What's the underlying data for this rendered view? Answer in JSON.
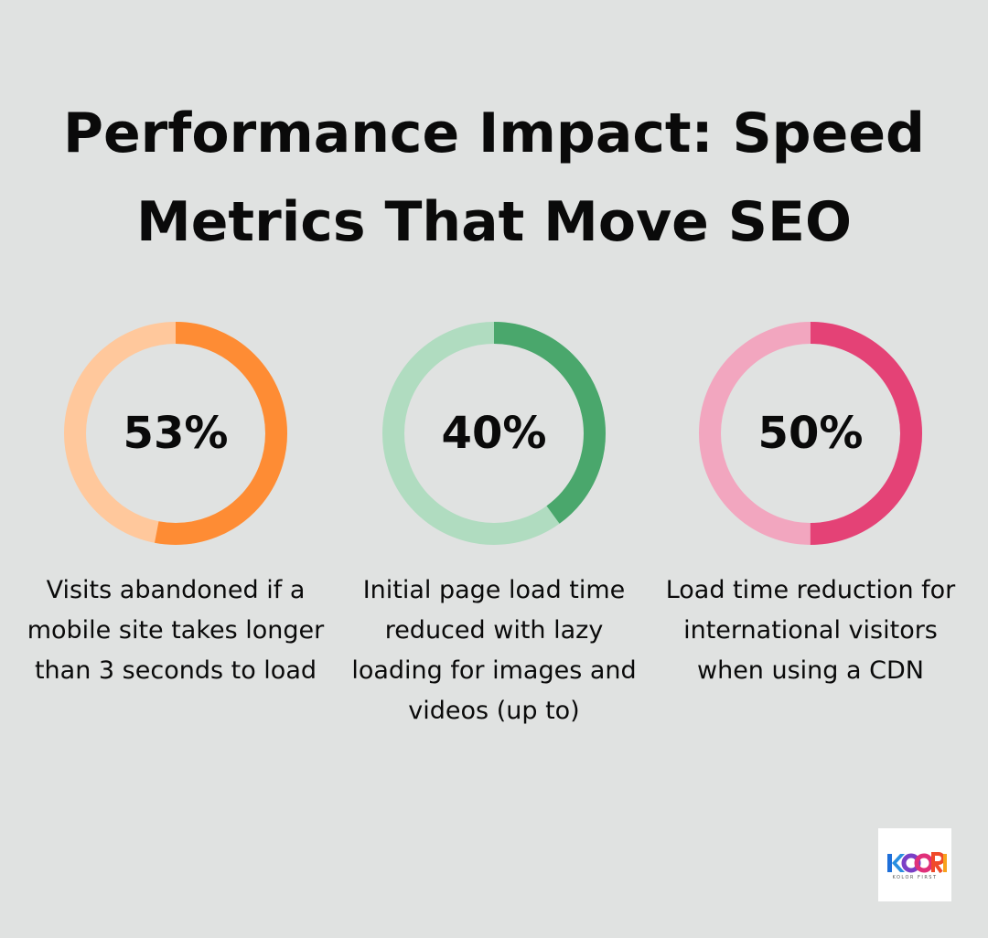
{
  "title_lines": [
    "Performance Impact: Speed",
    "Metrics That Move SEO"
  ],
  "chart_data": [
    {
      "type": "pie",
      "variant": "donut",
      "value": 53,
      "label": "53%",
      "description": "Visits abandoned if a mobile site takes longer than 3 seconds to load",
      "color": "#fe8c34",
      "track_color": "#ffc89c"
    },
    {
      "type": "pie",
      "variant": "donut",
      "value": 40,
      "label": "40%",
      "description": "Initial page load time reduced with lazy loading for images and videos (up to)",
      "color": "#4aa76c",
      "track_color": "#b0dcc0"
    },
    {
      "type": "pie",
      "variant": "donut",
      "value": 50,
      "label": "50%",
      "description": "Load time reduction for international visitors when using a CDN",
      "color": "#e44276",
      "track_color": "#f2a6bf"
    }
  ],
  "logo": {
    "text": "KOORI",
    "tagline": "KOLOR FIRST"
  }
}
